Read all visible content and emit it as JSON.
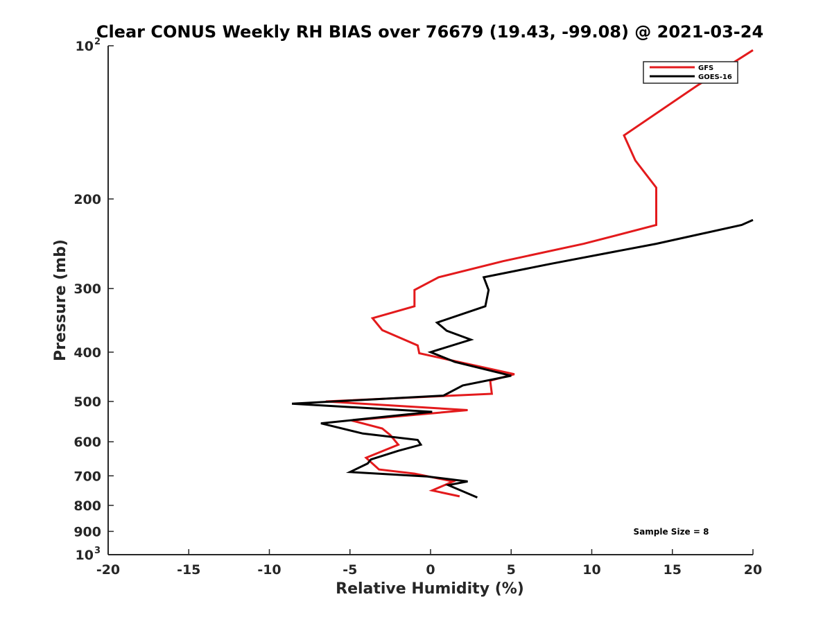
{
  "chart_data": {
    "type": "line",
    "title": "Clear CONUS Weekly RH BIAS over 76679 (19.43, -99.08) @ 2021-03-24",
    "xlabel": "Relative Humidity (%)",
    "ylabel": "Pressure (mb)",
    "xlim": [
      -20,
      20
    ],
    "ylim": [
      1000,
      100
    ],
    "y_scale": "log",
    "y_reversed": true,
    "grid": false,
    "legend_position": "top-right",
    "x_ticks": [
      -20,
      -15,
      -10,
      -5,
      0,
      5,
      10,
      15,
      20
    ],
    "x_tick_labels": [
      "-20",
      "-15",
      "-10",
      "-5",
      "0",
      "5",
      "10",
      "15",
      "20"
    ],
    "y_ticks": [
      {
        "value": 100,
        "base": "10",
        "exp": "2"
      },
      {
        "value": 200,
        "label": "200"
      },
      {
        "value": 300,
        "label": "300"
      },
      {
        "value": 400,
        "label": "400"
      },
      {
        "value": 500,
        "label": "500"
      },
      {
        "value": 600,
        "label": "600"
      },
      {
        "value": 700,
        "label": "700"
      },
      {
        "value": 800,
        "label": "800"
      },
      {
        "value": 900,
        "label": "900"
      },
      {
        "value": 1000,
        "base": "10",
        "exp": "3"
      }
    ],
    "series": [
      {
        "name": "GFS",
        "color": "#e31a1c",
        "points": [
          [
            20.0,
            102
          ],
          [
            16.5,
            120
          ],
          [
            12.0,
            150
          ],
          [
            12.7,
            168
          ],
          [
            14.0,
            190
          ],
          [
            14.0,
            225
          ],
          [
            9.5,
            245
          ],
          [
            4.5,
            265
          ],
          [
            0.5,
            285
          ],
          [
            -1.0,
            302
          ],
          [
            -1.0,
            325
          ],
          [
            -3.6,
            343
          ],
          [
            -3.0,
            362
          ],
          [
            -0.8,
            388
          ],
          [
            -0.7,
            402
          ],
          [
            5.2,
            442
          ],
          [
            3.7,
            455
          ],
          [
            3.8,
            483
          ],
          [
            -6.5,
            500
          ],
          [
            2.3,
            520
          ],
          [
            -4.9,
            545
          ],
          [
            -3.0,
            565
          ],
          [
            -2.5,
            582
          ],
          [
            -2.0,
            608
          ],
          [
            -4.0,
            645
          ],
          [
            -3.2,
            680
          ],
          [
            -1.0,
            693
          ],
          [
            1.4,
            718
          ],
          [
            0.1,
            748
          ],
          [
            1.8,
            768
          ]
        ]
      },
      {
        "name": "GOES-16",
        "color": "#000000",
        "points": [
          [
            20.0,
            220
          ],
          [
            19.3,
            225
          ],
          [
            14.0,
            245
          ],
          [
            7.5,
            268
          ],
          [
            3.3,
            285
          ],
          [
            3.6,
            302
          ],
          [
            3.4,
            325
          ],
          [
            0.4,
            350
          ],
          [
            1.0,
            363
          ],
          [
            2.5,
            378
          ],
          [
            0.0,
            400
          ],
          [
            1.5,
            418
          ],
          [
            5.0,
            445
          ],
          [
            2.0,
            465
          ],
          [
            0.8,
            487
          ],
          [
            -8.6,
            505
          ],
          [
            0.1,
            524
          ],
          [
            -6.8,
            552
          ],
          [
            -4.2,
            578
          ],
          [
            -0.8,
            595
          ],
          [
            -0.6,
            608
          ],
          [
            -2.0,
            625
          ],
          [
            -3.7,
            650
          ],
          [
            -3.9,
            662
          ],
          [
            -5.0,
            688
          ],
          [
            -0.2,
            702
          ],
          [
            2.3,
            718
          ],
          [
            1.1,
            730
          ],
          [
            2.9,
            772
          ]
        ]
      }
    ],
    "annotations": [
      "Sample Size = 8"
    ]
  }
}
